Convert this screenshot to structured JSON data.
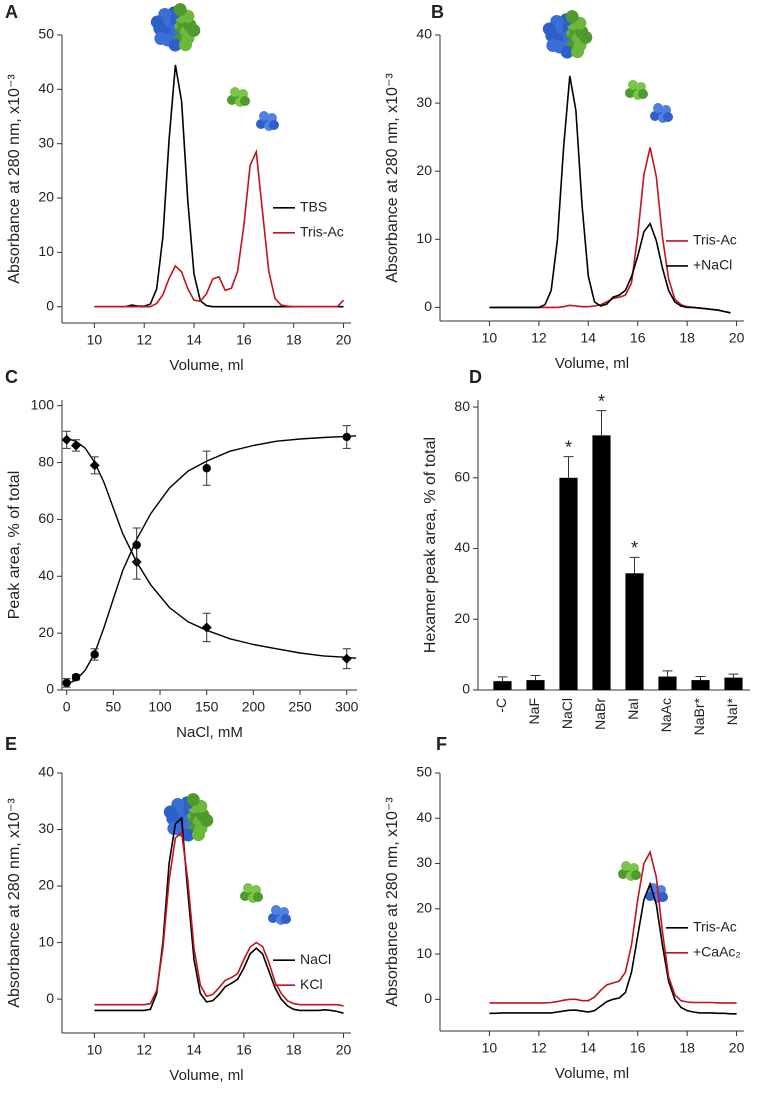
{
  "chart_data": [
    {
      "type": "line",
      "panel_label": "A",
      "xlabel": "Volume, ml",
      "ylabel": "Absorbance at 280 nm, x10⁻³",
      "x": [
        10,
        10.25,
        10.5,
        10.75,
        11,
        11.25,
        11.5,
        11.75,
        12,
        12.25,
        12.5,
        12.75,
        13,
        13.25,
        13.5,
        13.75,
        14,
        14.25,
        14.5,
        14.75,
        15,
        15.25,
        15.5,
        15.75,
        16,
        16.25,
        16.5,
        16.75,
        17,
        17.25,
        17.5,
        17.75,
        18,
        18.25,
        18.5,
        18.75,
        19,
        19.25,
        19.5,
        19.75,
        20
      ],
      "series": [
        {
          "name": "TBS",
          "color": "#000000",
          "values": [
            0,
            0,
            0,
            0,
            0,
            0,
            0.3,
            0.1,
            0.1,
            0.5,
            3.3,
            12.9,
            30.8,
            44.5,
            37.8,
            19.5,
            6,
            1.1,
            0.2,
            0,
            0,
            0,
            0,
            0,
            0,
            0,
            0,
            0,
            0,
            0,
            0,
            0,
            0,
            0,
            0,
            0,
            0,
            0,
            0,
            0,
            0
          ]
        },
        {
          "name": "Tris-Ac",
          "color": "#c0151b",
          "values": [
            0,
            0,
            0,
            0,
            0,
            0,
            0,
            0,
            0,
            0,
            0.6,
            2.2,
            5.2,
            7.5,
            6.4,
            3.3,
            1.2,
            1.0,
            2.4,
            5.1,
            5.5,
            3.0,
            3.4,
            6.5,
            15,
            26,
            28.5,
            17.3,
            6.5,
            1.5,
            0.3,
            0.1,
            0,
            0,
            0,
            0,
            0,
            0,
            0,
            0,
            1.2
          ]
        }
      ],
      "xlim": [
        8.7,
        20.3
      ],
      "ylim": [
        -3,
        50
      ],
      "xticks": [
        10,
        12,
        14,
        16,
        18,
        20
      ],
      "yticks": [
        0,
        10,
        20,
        30,
        40,
        50
      ],
      "legend": "center right"
    },
    {
      "type": "line",
      "panel_label": "B",
      "xlabel": "Volume, ml",
      "ylabel": "Absorbance at 280 nm, x10⁻³",
      "x": [
        10,
        10.25,
        10.5,
        10.75,
        11,
        11.25,
        11.5,
        11.75,
        12,
        12.25,
        12.5,
        12.75,
        13,
        13.25,
        13.5,
        13.75,
        14,
        14.25,
        14.5,
        14.75,
        15,
        15.25,
        15.5,
        15.75,
        16,
        16.25,
        16.5,
        16.75,
        17,
        17.25,
        17.5,
        17.75,
        18,
        18.25,
        18.5,
        18.75,
        19,
        19.25,
        19.5,
        19.75,
        20
      ],
      "series": [
        {
          "name": "Tris-Ac",
          "color": "#c0151b",
          "values": [
            0,
            0,
            0,
            0,
            0,
            0,
            0,
            0,
            0,
            0,
            0,
            0,
            0.1,
            0.3,
            0.2,
            0.1,
            0.1,
            0.2,
            0.4,
            0.8,
            1.3,
            1.5,
            1.8,
            3.6,
            10.5,
            19.5,
            23.5,
            19.2,
            10.4,
            4.2,
            1.2,
            0.4,
            0.1,
            0,
            -0.1,
            -0.2,
            -0.3,
            -0.4,
            -0.6,
            -0.8,
            null
          ]
        },
        {
          "name": "+NaCl",
          "color": "#000000",
          "values": [
            0,
            0,
            0,
            0,
            0,
            0,
            0,
            0,
            0,
            0.4,
            2.5,
            9.9,
            23.5,
            34,
            28.9,
            14.9,
            4.6,
            0.8,
            0.2,
            0.5,
            1.5,
            1.8,
            2.5,
            4.5,
            7.5,
            11.1,
            12.3,
            9.8,
            5.8,
            2.5,
            0.8,
            0.2,
            0,
            0,
            -0.1,
            -0.2,
            -0.3,
            -0.4,
            -0.6,
            -0.8,
            null
          ]
        }
      ],
      "xlim": [
        8,
        20.3
      ],
      "ylim": [
        -2,
        40
      ],
      "xticks": [
        10,
        12,
        14,
        16,
        18,
        20
      ],
      "yticks": [
        0,
        10,
        20,
        30,
        40
      ],
      "legend": "lower right"
    },
    {
      "type": "scatter",
      "panel_label": "C",
      "xlabel": "NaCl, mM",
      "ylabel": "Peak area, % of total",
      "x": [
        0,
        10,
        30,
        75,
        150,
        300
      ],
      "fit_x": [
        0,
        10,
        20,
        30,
        40,
        50,
        60,
        75,
        90,
        110,
        130,
        150,
        175,
        200,
        225,
        250,
        275,
        300,
        310
      ],
      "series": [
        {
          "marker": "diamond",
          "color": "#000000",
          "values": [
            88,
            86,
            79,
            45,
            22,
            11
          ],
          "errors": [
            3,
            2,
            3,
            6,
            5,
            3.5
          ],
          "fit": [
            88.5,
            87.5,
            85,
            80,
            73,
            64,
            55,
            45,
            37,
            29,
            24,
            21,
            18,
            16,
            14.5,
            13,
            12,
            11.5,
            11.2
          ]
        },
        {
          "marker": "circle",
          "color": "#000000",
          "values": [
            2.5,
            4.5,
            12.5,
            51,
            78,
            89
          ],
          "errors": [
            1.5,
            1,
            2,
            6,
            6,
            4
          ],
          "fit": [
            2,
            3.5,
            7,
            13,
            22,
            32,
            42,
            53,
            62,
            71,
            77,
            80.5,
            84,
            86,
            87.5,
            88.3,
            88.8,
            89.2,
            89.4
          ]
        }
      ],
      "xlim": [
        -5,
        311
      ],
      "ylim": [
        0,
        102
      ],
      "xticks": [
        0,
        50,
        100,
        150,
        200,
        250,
        300
      ],
      "yticks": [
        0,
        20,
        40,
        60,
        80,
        100
      ]
    },
    {
      "type": "bar",
      "panel_label": "D",
      "ylabel": "Hexamer peak area, % of total",
      "categories": [
        "-C",
        "NaF",
        "NaCl",
        "NaBr",
        "NaI",
        "NaAc",
        "NaBr*",
        "NaI*"
      ],
      "values": [
        2.5,
        2.8,
        60,
        72,
        33,
        3.8,
        2.8,
        3.5
      ],
      "errors": [
        1.2,
        1.3,
        6,
        7,
        4.5,
        1.6,
        1,
        1
      ],
      "significant": [
        false,
        false,
        true,
        true,
        true,
        false,
        false,
        false
      ],
      "significance_label": "*",
      "color": "#000000",
      "ylim": [
        0,
        82
      ],
      "yticks": [
        0,
        20,
        40,
        60,
        80
      ]
    },
    {
      "type": "line",
      "panel_label": "E",
      "xlabel": "Volume, ml",
      "ylabel": "Absorbance at 280 nm, x10⁻³",
      "x": [
        10,
        10.25,
        10.5,
        10.75,
        11,
        11.25,
        11.5,
        11.75,
        12,
        12.25,
        12.5,
        12.75,
        13,
        13.25,
        13.5,
        13.75,
        14,
        14.25,
        14.5,
        14.75,
        15,
        15.25,
        15.5,
        15.75,
        16,
        16.25,
        16.5,
        16.75,
        17,
        17.25,
        17.5,
        17.75,
        18,
        18.25,
        18.5,
        18.75,
        19,
        19.25,
        19.5,
        19.75,
        20
      ],
      "series": [
        {
          "name": "NaCl",
          "color": "#000000",
          "values": [
            -2,
            -2,
            -2,
            -2,
            -2,
            -2,
            -2,
            -2,
            -2,
            -1.8,
            1,
            10,
            24,
            31,
            32,
            19,
            7,
            1,
            -0.5,
            -0.3,
            0.8,
            2.2,
            2.8,
            3.5,
            5.5,
            8,
            9,
            8,
            5,
            2,
            0,
            -1.2,
            -1.8,
            -2,
            -2,
            -2,
            -2,
            -1.9,
            -2,
            -2.2,
            -2.5
          ]
        },
        {
          "name": "KCl",
          "color": "#c0151b",
          "values": [
            -1,
            -1,
            -1,
            -1,
            -1,
            -1,
            -1,
            -1,
            -1,
            -0.8,
            1.5,
            9,
            21,
            28.5,
            29.5,
            21,
            9,
            2.5,
            0.5,
            0.8,
            2,
            3.3,
            3.8,
            4.5,
            7,
            9.2,
            10,
            9.3,
            6.5,
            3,
            1,
            -0.3,
            -0.8,
            -1,
            -1,
            -1,
            -1,
            -1,
            -1,
            -1,
            -1.2
          ]
        }
      ],
      "xlim": [
        8.7,
        20.3
      ],
      "ylim": [
        -6,
        40
      ],
      "xticks": [
        10,
        12,
        14,
        16,
        18,
        20
      ],
      "yticks": [
        0,
        10,
        20,
        30,
        40
      ],
      "legend": "lower right"
    },
    {
      "type": "line",
      "panel_label": "F",
      "xlabel": "Volume, ml",
      "ylabel": "Absorbance at 280 nm, x10⁻³",
      "x": [
        10,
        10.25,
        10.5,
        10.75,
        11,
        11.25,
        11.5,
        11.75,
        12,
        12.25,
        12.5,
        12.75,
        13,
        13.25,
        13.5,
        13.75,
        14,
        14.25,
        14.5,
        14.75,
        15,
        15.25,
        15.5,
        15.75,
        16,
        16.25,
        16.5,
        16.75,
        17,
        17.25,
        17.5,
        17.75,
        18,
        18.25,
        18.5,
        18.75,
        19,
        19.25,
        19.5,
        19.75,
        20
      ],
      "series": [
        {
          "name": "Tris-Ac",
          "color": "#000000",
          "values": [
            -3.1,
            -3.1,
            -3,
            -3,
            -3,
            -3,
            -3,
            -3,
            -3,
            -3,
            -3,
            -2.8,
            -2.6,
            -2.4,
            -2.4,
            -2.6,
            -2.8,
            -2.5,
            -1.5,
            -0.5,
            0,
            0.3,
            1.5,
            6,
            14,
            22,
            25.5,
            21,
            12,
            4,
            0,
            -1.8,
            -2.5,
            -2.8,
            -3,
            -3,
            -3,
            -3.1,
            -3.1,
            -3.2,
            -3.2
          ]
        },
        {
          "name": "+CaAc₂",
          "color": "#c0151b",
          "values": [
            -0.8,
            -0.8,
            -0.8,
            -0.8,
            -0.8,
            -0.8,
            -0.8,
            -0.8,
            -0.8,
            -0.8,
            -0.7,
            -0.5,
            -0.2,
            0,
            0,
            -0.3,
            -0.3,
            0.5,
            2,
            3.2,
            3.6,
            4,
            6,
            12,
            22,
            30,
            32.5,
            27,
            15,
            5,
            1,
            -0.3,
            -0.6,
            -0.7,
            -0.7,
            -0.7,
            -0.7,
            -0.8,
            -0.8,
            -0.8,
            -0.8
          ]
        }
      ],
      "xlim": [
        8,
        20.3
      ],
      "ylim": [
        -7,
        50
      ],
      "xticks": [
        10,
        12,
        14,
        16,
        18,
        20
      ],
      "yticks": [
        0,
        10,
        20,
        30,
        40,
        50
      ],
      "legend": "center right"
    }
  ]
}
